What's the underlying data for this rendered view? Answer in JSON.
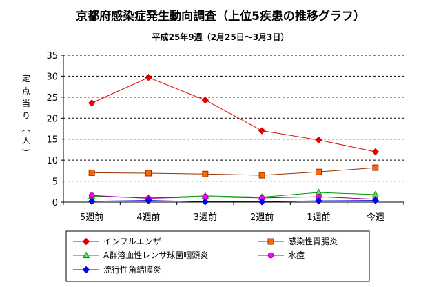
{
  "chart_data": {
    "type": "line",
    "title": "京都府感染症発生動向調査（上位5疾患の推移グラフ）",
    "subtitle": "平成25年9週（2月25日～3月3日）",
    "ylabel": "定点当り（人）",
    "xlabel": "",
    "categories": [
      "5週前",
      "4週前",
      "3週前",
      "2週前",
      "1週前",
      "今週"
    ],
    "ylim": [
      0,
      35
    ],
    "yticks": [
      0,
      5,
      10,
      15,
      20,
      25,
      30,
      35
    ],
    "grid": "horizontal-dashed",
    "legend": "bottom",
    "series": [
      {
        "name": "インフルエンザ",
        "color": "#e00000",
        "marker": "diamond",
        "marker_fill": "#e00000",
        "values": [
          23.6,
          29.7,
          24.3,
          17.0,
          14.8,
          12.0
        ]
      },
      {
        "name": "感染性胃腸炎",
        "color": "#993300",
        "marker": "square",
        "marker_fill": "#ff6600",
        "values": [
          7.0,
          6.9,
          6.7,
          6.4,
          7.2,
          8.2
        ]
      },
      {
        "name": "A群溶血性レンサ球菌咽頭炎",
        "color": "#009900",
        "marker": "triangle",
        "marker_fill": "#66dd66",
        "values": [
          1.4,
          1.0,
          1.5,
          1.2,
          2.3,
          1.8
        ]
      },
      {
        "name": "水痘",
        "color": "#990099",
        "marker": "circle",
        "marker_fill": "#ff00ff",
        "values": [
          1.6,
          0.9,
          1.3,
          1.0,
          1.3,
          0.7
        ]
      },
      {
        "name": "流行性角結膜炎",
        "color": "#0000cc",
        "marker": "diamond",
        "marker_fill": "#0000ff",
        "values": [
          0.2,
          0.4,
          0.1,
          0.1,
          0.3,
          0.4
        ]
      }
    ]
  }
}
